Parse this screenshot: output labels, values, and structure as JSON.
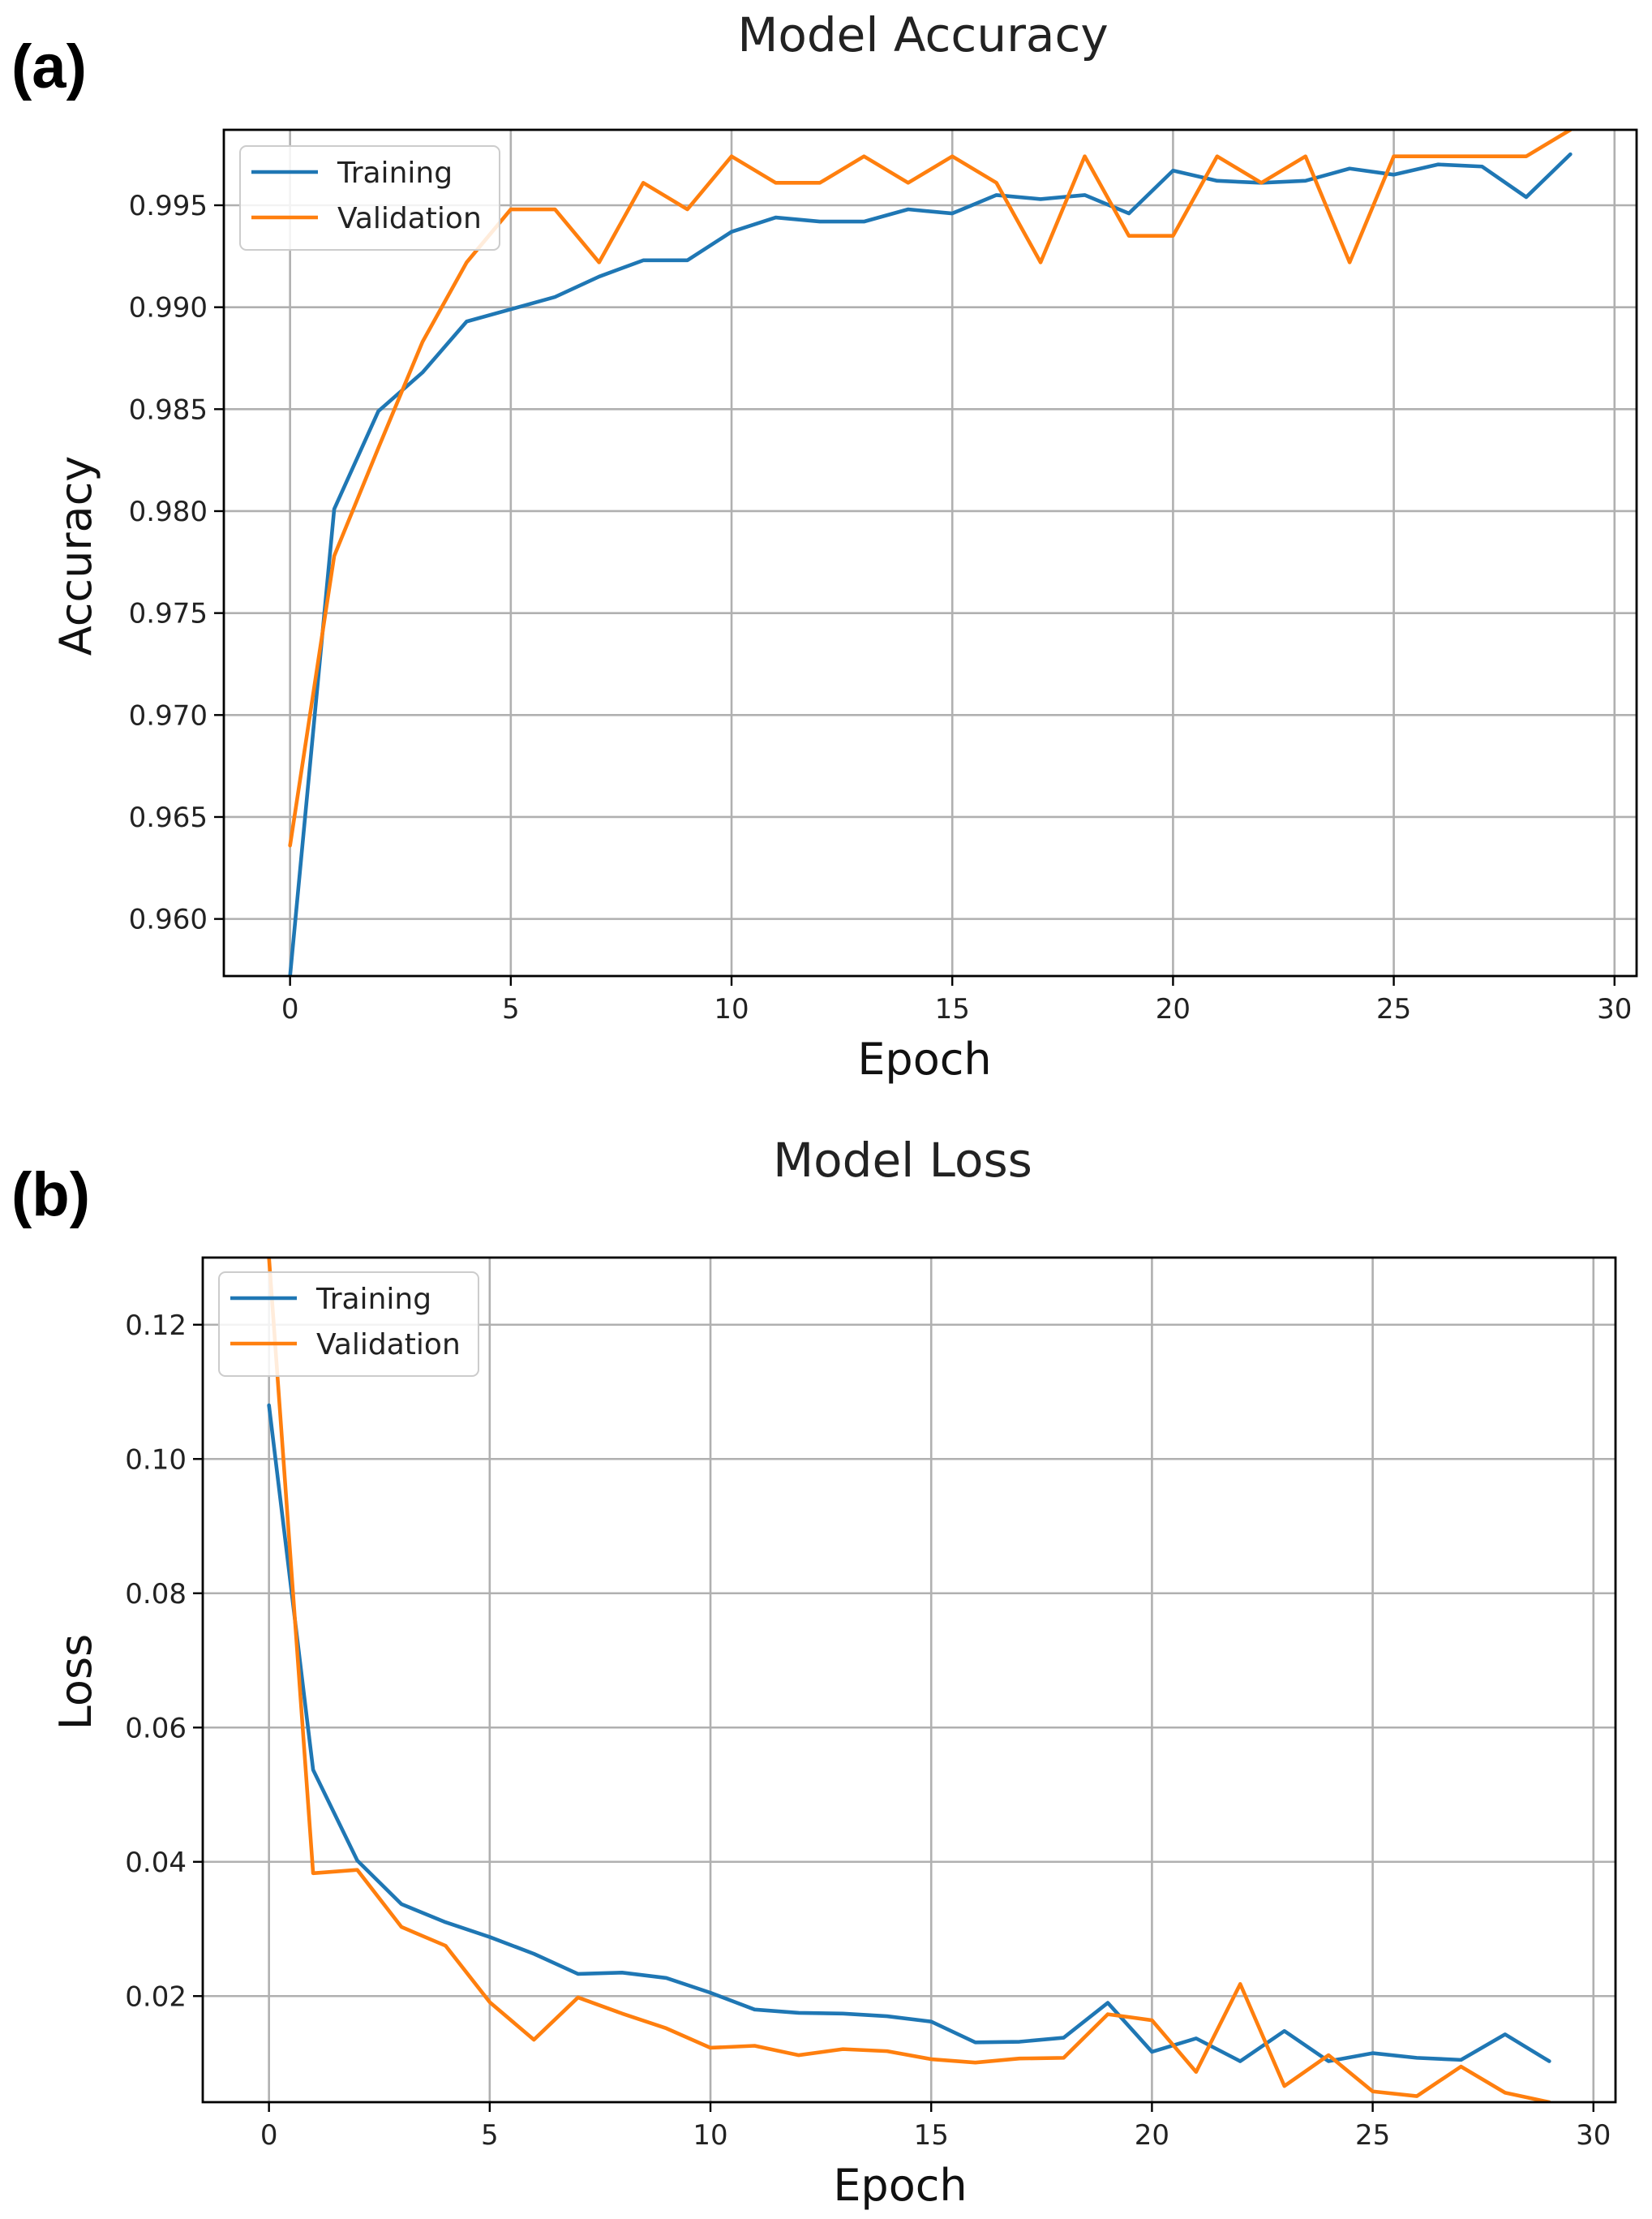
{
  "figure": {
    "panel_a_label": "(a)",
    "panel_b_label": "(b)"
  },
  "colors": {
    "training": "#1f77b4",
    "validation": "#ff7f0e"
  },
  "chart_data": [
    {
      "type": "line",
      "title": "Model Accuracy",
      "xlabel": "Epoch",
      "ylabel": "Accuracy",
      "xlim": [
        -1.5,
        30.5
      ],
      "ylim": [
        0.9572,
        0.9987
      ],
      "xticks": [
        0,
        5,
        10,
        15,
        20,
        25,
        30
      ],
      "yticks": [
        0.96,
        0.965,
        0.97,
        0.975,
        0.98,
        0.985,
        0.99,
        0.995
      ],
      "ytick_labels": [
        "0.960",
        "0.965",
        "0.970",
        "0.975",
        "0.980",
        "0.985",
        "0.990",
        "0.995"
      ],
      "grid": true,
      "legend": "top-left",
      "x": [
        0,
        1,
        2,
        3,
        4,
        5,
        6,
        7,
        8,
        9,
        10,
        11,
        12,
        13,
        14,
        15,
        16,
        17,
        18,
        19,
        20,
        21,
        22,
        23,
        24,
        25,
        26,
        27,
        28,
        29
      ],
      "series": [
        {
          "name": "Training",
          "values": [
            0.9572,
            0.9801,
            0.9849,
            0.9868,
            0.9893,
            0.9899,
            0.9905,
            0.9915,
            0.9923,
            0.9923,
            0.9937,
            0.9944,
            0.9942,
            0.9942,
            0.9948,
            0.9946,
            0.9955,
            0.9953,
            0.9955,
            0.9946,
            0.9967,
            0.9962,
            0.9961,
            0.9962,
            0.9968,
            0.9965,
            0.997,
            0.9969,
            0.9954,
            0.9975
          ]
        },
        {
          "name": "Validation",
          "values": [
            0.9636,
            0.9778,
            0.9831,
            0.9883,
            0.9922,
            0.9948,
            0.9948,
            0.9922,
            0.9961,
            0.9948,
            0.9974,
            0.9961,
            0.9961,
            0.9974,
            0.9961,
            0.9974,
            0.9961,
            0.9922,
            0.9974,
            0.9935,
            0.9935,
            0.9974,
            0.9961,
            0.9974,
            0.9922,
            0.9974,
            0.9974,
            0.9974,
            0.9974,
            0.9987
          ]
        }
      ]
    },
    {
      "type": "line",
      "title": "Model Loss",
      "xlabel": "Epoch",
      "ylabel": "Loss",
      "xlim": [
        -1.5,
        30.5
      ],
      "ylim": [
        0.0042,
        0.13
      ],
      "xticks": [
        0,
        5,
        10,
        15,
        20,
        25,
        30
      ],
      "yticks": [
        0.02,
        0.04,
        0.06,
        0.08,
        0.1,
        0.12
      ],
      "ytick_labels": [
        "0.02",
        "0.04",
        "0.06",
        "0.08",
        "0.10",
        "0.12"
      ],
      "grid": true,
      "legend": "top-left",
      "x": [
        0,
        1,
        2,
        3,
        4,
        5,
        6,
        7,
        8,
        9,
        10,
        11,
        12,
        13,
        14,
        15,
        16,
        17,
        18,
        19,
        20,
        21,
        22,
        23,
        24,
        25,
        26,
        27,
        28,
        29
      ],
      "series": [
        {
          "name": "Training",
          "values": [
            0.108,
            0.0537,
            0.0402,
            0.0337,
            0.031,
            0.0288,
            0.0263,
            0.0233,
            0.0235,
            0.0227,
            0.0205,
            0.018,
            0.0175,
            0.0174,
            0.017,
            0.0162,
            0.0131,
            0.0132,
            0.0138,
            0.019,
            0.0117,
            0.0137,
            0.0103,
            0.0148,
            0.0103,
            0.0115,
            0.0108,
            0.0105,
            0.0143,
            0.0103
          ]
        },
        {
          "name": "Validation",
          "values": [
            0.13,
            0.0383,
            0.0388,
            0.0303,
            0.0275,
            0.0191,
            0.0135,
            0.0198,
            0.0174,
            0.0152,
            0.0123,
            0.0126,
            0.0112,
            0.0121,
            0.0118,
            0.0106,
            0.0101,
            0.0107,
            0.0108,
            0.0173,
            0.0164,
            0.0087,
            0.0218,
            0.0066,
            0.0112,
            0.0058,
            0.0051,
            0.0095,
            0.0056,
            0.0042
          ]
        }
      ]
    }
  ]
}
